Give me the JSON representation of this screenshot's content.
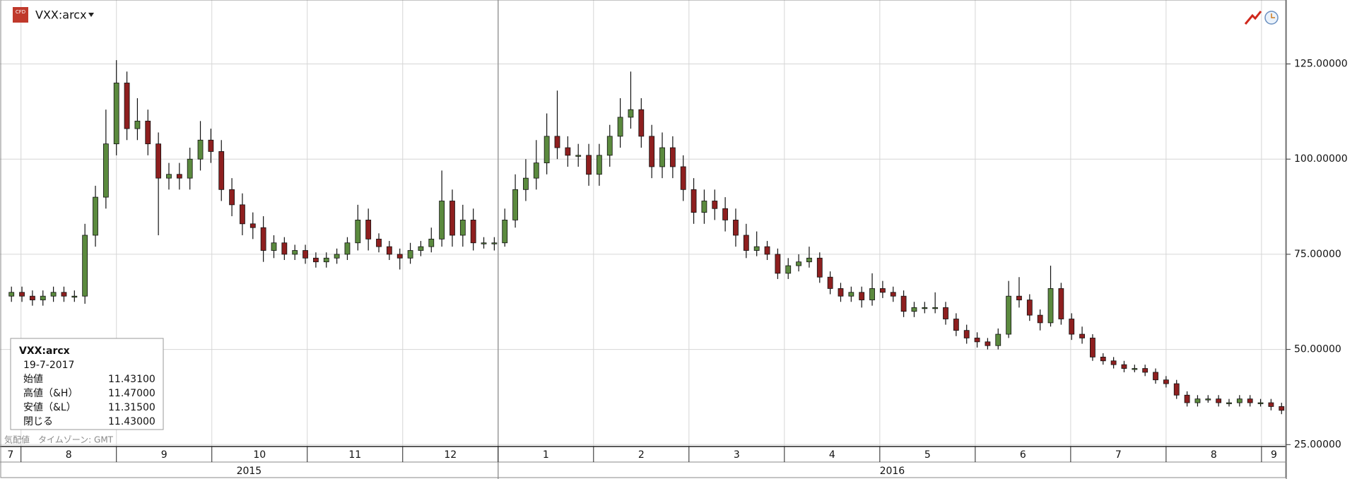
{
  "header": {
    "icon_text": "CFD",
    "symbol": "VXX:arcx"
  },
  "chart_data": {
    "type": "candlestick",
    "up_color": "#5b8a3e",
    "down_color": "#8e1f1f",
    "grid": true,
    "x": [
      7.9,
      8.01,
      8.12,
      8.23,
      8.34,
      8.45,
      8.56,
      8.67,
      8.78,
      8.89,
      9,
      9.11,
      9.22,
      9.33,
      9.44,
      9.55,
      9.66,
      9.77,
      9.88,
      9.99,
      10.1,
      10.21,
      10.32,
      10.43,
      10.54,
      10.65,
      10.76,
      10.87,
      10.98,
      11.09,
      11.2,
      11.31,
      11.42,
      11.53,
      11.64,
      11.75,
      11.86,
      11.97,
      12.08,
      12.19,
      12.3,
      12.41,
      12.52,
      12.63,
      12.74,
      12.85,
      12.96,
      13.07,
      13.18,
      13.29,
      13.4,
      13.51,
      13.62,
      13.73,
      13.84,
      13.95,
      14.06,
      14.17,
      14.28,
      14.39,
      14.5,
      14.61,
      14.72,
      14.83,
      14.94,
      15.05,
      15.16,
      15.27,
      15.38,
      15.49,
      15.6,
      15.71,
      15.82,
      15.93,
      16.04,
      16.15,
      16.26,
      16.37,
      16.48,
      16.59,
      16.7,
      16.81,
      16.92,
      17.03,
      17.14,
      17.25,
      17.36,
      17.47,
      17.58,
      17.69,
      17.8,
      17.91,
      18.02,
      18.13,
      18.24,
      18.35,
      18.46,
      18.57,
      18.68,
      18.79,
      18.9,
      19.01,
      19.12,
      19.23,
      19.34,
      19.45,
      19.56,
      19.67,
      19.78,
      19.89,
      20,
      20.11,
      20.22,
      20.33,
      20.44,
      20.55,
      20.66,
      20.77,
      20.88,
      20.99,
      21.1,
      21.21
    ],
    "open": [
      64,
      65,
      64,
      63,
      64,
      65,
      64,
      64,
      80,
      90,
      104,
      120,
      108,
      110,
      104,
      95,
      96,
      95,
      100,
      105,
      102,
      92,
      88,
      83,
      82,
      76,
      78,
      75,
      76,
      74,
      73,
      74,
      75,
      78,
      84,
      79,
      77,
      75,
      74,
      76,
      77,
      79,
      89,
      80,
      84,
      78,
      78,
      78,
      84,
      92,
      95,
      99,
      106,
      103,
      101,
      101,
      96,
      101,
      106,
      111,
      113,
      106,
      98,
      103,
      98,
      92,
      86,
      89,
      87,
      84,
      80,
      76,
      77,
      75,
      70,
      72,
      73,
      74,
      69,
      66,
      64,
      65,
      63,
      66,
      65,
      64,
      60,
      61,
      61,
      61,
      58,
      55,
      53,
      52,
      51,
      54,
      64,
      63,
      59,
      57,
      66,
      58,
      54,
      53,
      48,
      47,
      46,
      45,
      45,
      44,
      42,
      41,
      38,
      36,
      37,
      37,
      36,
      36,
      37,
      36,
      36,
      35
    ],
    "high": [
      66.5,
      66.5,
      65.5,
      65.5,
      66.5,
      66.5,
      65.5,
      83,
      93,
      113,
      126,
      123,
      116,
      113,
      107,
      99,
      99,
      103,
      110,
      108,
      105,
      95,
      91,
      86,
      85,
      80,
      79.5,
      77.5,
      77.5,
      75.5,
      75.5,
      76.5,
      79.5,
      88,
      87,
      80.5,
      78.5,
      76.5,
      78,
      78.5,
      82,
      97,
      92,
      88,
      87,
      79.5,
      79.5,
      87,
      96,
      100,
      105,
      112,
      118,
      106,
      104,
      104,
      104,
      109,
      116,
      123,
      116,
      109,
      107,
      106,
      101,
      95,
      92,
      92,
      90,
      87,
      83,
      81,
      78.5,
      76.5,
      74,
      75,
      77,
      75.5,
      70.5,
      67.5,
      66.5,
      66.5,
      70,
      68,
      66.5,
      65.5,
      62.5,
      62.5,
      65,
      62.5,
      59.5,
      56.5,
      54.5,
      53,
      55.5,
      68,
      69,
      64.5,
      60.5,
      72,
      67.5,
      59.5,
      56,
      54,
      49,
      48,
      47,
      46,
      46,
      45,
      43,
      42,
      39,
      38,
      38,
      38,
      37,
      38,
      38,
      37,
      37,
      36
    ],
    "low": [
      62.5,
      62.5,
      61.5,
      61.5,
      62.5,
      62.5,
      62.5,
      62,
      77,
      87,
      101,
      105,
      105,
      101,
      80,
      92,
      92,
      92,
      97,
      99,
      89,
      85,
      80,
      79,
      73,
      74,
      73.5,
      73.5,
      72.5,
      71.5,
      71.5,
      72.5,
      73.5,
      76,
      76,
      75.5,
      73.5,
      71,
      72.5,
      74.5,
      75.5,
      77,
      77,
      77,
      76,
      76.5,
      76,
      77,
      82,
      89,
      92,
      96,
      100,
      98,
      98,
      93,
      93,
      98,
      103,
      108,
      103,
      95,
      95,
      95,
      89,
      83,
      83,
      84,
      81,
      77,
      74,
      74.5,
      73.5,
      68.5,
      68.5,
      70.5,
      71.5,
      67.5,
      64.5,
      62.5,
      62.5,
      61,
      61.5,
      63.5,
      62.5,
      58.5,
      58.5,
      59.5,
      59.5,
      56.5,
      53.5,
      51.5,
      50.5,
      50,
      50,
      53,
      61,
      57.5,
      55,
      56,
      56.5,
      52.5,
      51.5,
      47,
      46,
      45,
      44,
      44,
      43,
      41,
      40,
      37,
      35,
      35,
      36,
      35,
      35,
      35,
      35,
      35,
      34,
      33
    ],
    "close": [
      65,
      64,
      63,
      64,
      65,
      64,
      64,
      80,
      90,
      104,
      120,
      108,
      110,
      104,
      95,
      96,
      95,
      100,
      105,
      102,
      92,
      88,
      83,
      82,
      76,
      78,
      75,
      76,
      74,
      73,
      74,
      75,
      78,
      84,
      79,
      77,
      75,
      74,
      76,
      77,
      79,
      89,
      80,
      84,
      78,
      78,
      78,
      84,
      92,
      95,
      99,
      106,
      103,
      101,
      101,
      96,
      101,
      106,
      111,
      113,
      106,
      98,
      103,
      98,
      92,
      86,
      89,
      87,
      84,
      80,
      76,
      77,
      75,
      70,
      72,
      73,
      74,
      69,
      66,
      64,
      65,
      63,
      66,
      65,
      64,
      60,
      61,
      61,
      61,
      58,
      55,
      53,
      52,
      51,
      54,
      64,
      63,
      59,
      57,
      66,
      58,
      54,
      53,
      48,
      47,
      46,
      45,
      45,
      44,
      42,
      41,
      38,
      36,
      37,
      37,
      36,
      36,
      37,
      36,
      36,
      35,
      34
    ],
    "ylim": [
      24.5,
      141.8
    ],
    "yticks": [
      {
        "value": 25,
        "label": "25.00000"
      },
      {
        "value": 50,
        "label": "50.00000"
      },
      {
        "value": 75,
        "label": "75.00000"
      },
      {
        "value": 100,
        "label": "100.00000"
      },
      {
        "value": 125,
        "label": "125.00000"
      }
    ],
    "xlim": [
      7.78,
      21.26
    ],
    "xticks": [
      {
        "value": 7,
        "label": "7"
      },
      {
        "value": 8,
        "label": "8"
      },
      {
        "value": 9,
        "label": "9"
      },
      {
        "value": 10,
        "label": "10"
      },
      {
        "value": 11,
        "label": "11"
      },
      {
        "value": 12,
        "label": "12"
      },
      {
        "value": 13,
        "label": "1"
      },
      {
        "value": 14,
        "label": "2"
      },
      {
        "value": 15,
        "label": "3"
      },
      {
        "value": 16,
        "label": "4"
      },
      {
        "value": 17,
        "label": "5"
      },
      {
        "value": 18,
        "label": "6"
      },
      {
        "value": 19,
        "label": "7"
      },
      {
        "value": 20,
        "label": "8"
      },
      {
        "value": 21,
        "label": "9"
      }
    ],
    "years": [
      {
        "value": 7,
        "label": "2015"
      },
      {
        "value": 13,
        "label": "2016"
      }
    ]
  },
  "info_box": {
    "symbol": "VXX:arcx",
    "date": "19-7-2017",
    "rows": [
      [
        "始値",
        "11.43100"
      ],
      [
        "高値（&H）",
        "11.47000"
      ],
      [
        "安値（&L）",
        "11.31500"
      ],
      [
        "閉じる",
        "11.43000"
      ]
    ]
  },
  "footer": "気配値　タイムゾーン: GMT"
}
